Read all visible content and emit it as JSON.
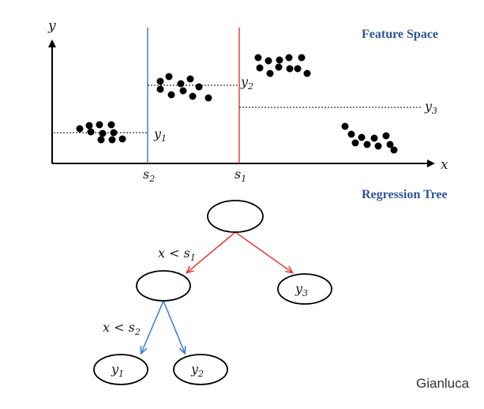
{
  "headings": {
    "feature_space": "Feature Space",
    "regression_tree": "Regression Tree"
  },
  "axes": {
    "x_label": "x",
    "y_label": "y"
  },
  "splits": {
    "s1": {
      "base": "s",
      "sub": "1",
      "color": "#e8403b"
    },
    "s2": {
      "base": "s",
      "sub": "2",
      "color": "#3f7fd6"
    }
  },
  "region_means": {
    "y1": {
      "base": "y",
      "sub": "1"
    },
    "y2": {
      "base": "y",
      "sub": "2"
    },
    "y3": {
      "base": "y",
      "sub": "3"
    }
  },
  "tree": {
    "edge1_label": {
      "text": "x < s",
      "sub": "1"
    },
    "edge2_label": {
      "text": "x < s",
      "sub": "2"
    },
    "leaf_y1": {
      "base": "y",
      "sub": "1"
    },
    "leaf_y2": {
      "base": "y",
      "sub": "2"
    },
    "leaf_y3": {
      "base": "y",
      "sub": "3"
    }
  },
  "credit": "Gianluca"
}
